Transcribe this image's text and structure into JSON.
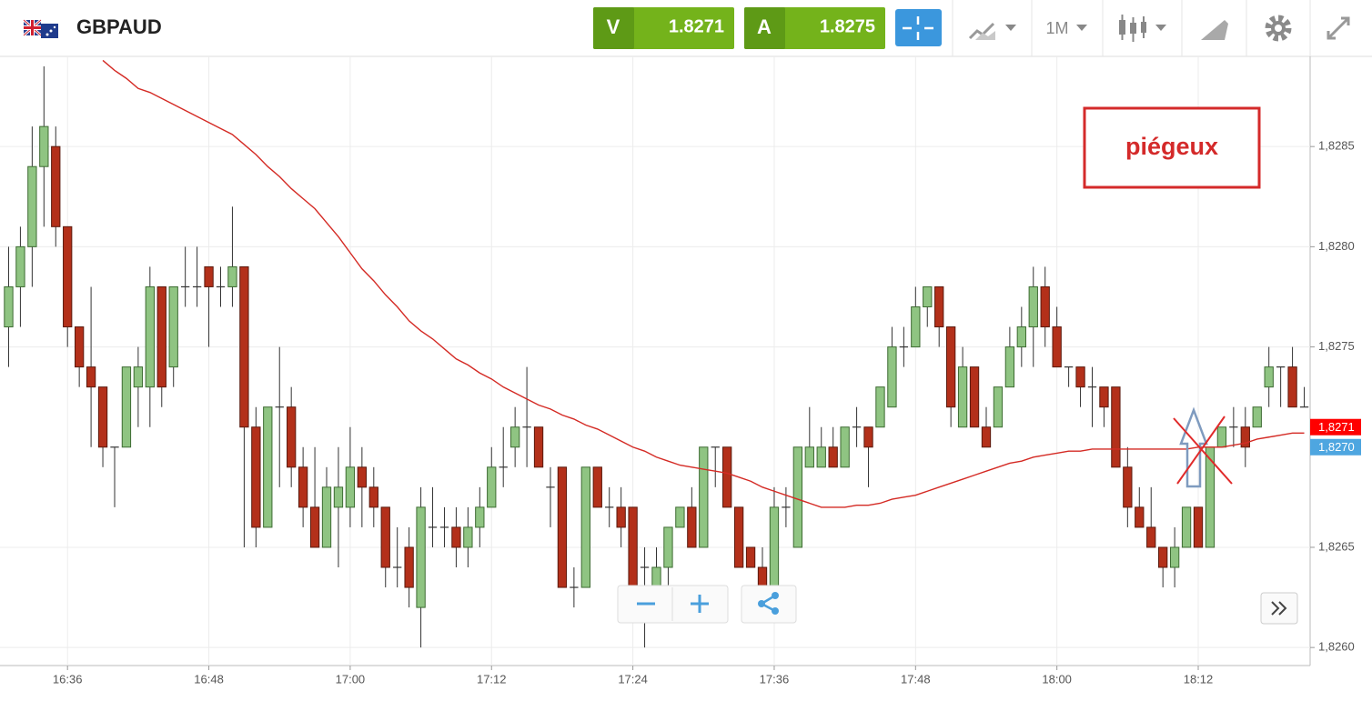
{
  "header": {
    "symbol": "GBPAUD",
    "bid_label": "V",
    "bid": "1.8271",
    "ask_label": "A",
    "ask": "1.8275",
    "timeframe": "1M"
  },
  "chart_data": {
    "type": "candlestick",
    "categories": [
      null,
      null,
      null,
      null,
      null,
      "16:36",
      null,
      null,
      null,
      null,
      null,
      null,
      null,
      null,
      null,
      null,
      null,
      "16:48",
      null,
      null,
      null,
      null,
      null,
      null,
      null,
      null,
      null,
      null,
      null,
      "17:00",
      null,
      null,
      null,
      null,
      null,
      null,
      null,
      null,
      null,
      null,
      null,
      "17:12",
      null,
      null,
      null,
      null,
      null,
      null,
      null,
      null,
      null,
      null,
      null,
      "17:24",
      null,
      null,
      null,
      null,
      null,
      null,
      null,
      null,
      null,
      null,
      null,
      "17:36",
      null,
      null,
      null,
      null,
      null,
      null,
      null,
      null,
      null,
      null,
      null,
      "17:48",
      null,
      null,
      null,
      null,
      null,
      null,
      null,
      null,
      null,
      null,
      null,
      "18:00",
      null,
      null,
      null,
      null,
      null,
      null,
      null,
      null,
      null,
      null,
      null,
      "18:12",
      null,
      null,
      null,
      null,
      null,
      null,
      null,
      null,
      null
    ],
    "open": [
      1.8276,
      1.8278,
      1.828,
      1.8284,
      1.8285,
      1.8281,
      1.8276,
      1.8274,
      1.8273,
      1.827,
      1.827,
      1.8273,
      1.8273,
      1.8278,
      1.8274,
      1.8278,
      1.8278,
      1.8279,
      1.8278,
      1.8278,
      1.8279,
      1.8271,
      1.8266,
      1.8272,
      1.8272,
      1.8269,
      1.8267,
      1.8265,
      1.8267,
      1.8267,
      1.8269,
      1.8268,
      1.8267,
      1.8264,
      1.8265,
      1.8262,
      1.8266,
      1.8266,
      1.8266,
      1.8265,
      1.8266,
      1.8267,
      1.8269,
      1.827,
      1.8271,
      1.8271,
      1.8268,
      1.8269,
      1.8263,
      1.8263,
      1.8269,
      1.8267,
      1.8267,
      1.8267,
      1.8264,
      1.8263,
      1.8264,
      1.8266,
      1.8267,
      1.8265,
      1.827,
      1.827,
      1.8267,
      1.8265,
      1.8264,
      1.8263,
      1.8267,
      1.8265,
      1.8269,
      1.8269,
      1.827,
      1.8269,
      1.8271,
      1.8271,
      1.8271,
      1.8272,
      1.8275,
      1.8275,
      1.8277,
      1.8278,
      1.8276,
      1.8271,
      1.8274,
      1.8271,
      1.8271,
      1.8273,
      1.8275,
      1.8276,
      1.8278,
      1.8276,
      1.8274,
      1.8274,
      1.8273,
      1.8273,
      1.8273,
      1.8269,
      1.8267,
      1.8266,
      1.8265,
      1.8264,
      1.8265,
      1.8267,
      1.8265,
      1.827,
      1.8271,
      1.8271,
      1.8271,
      1.8273,
      1.8274,
      1.8274,
      1.8272
    ],
    "high": [
      1.828,
      1.8281,
      1.8286,
      1.8289,
      1.8286,
      1.8281,
      1.8276,
      1.8278,
      1.8273,
      1.827,
      1.8274,
      1.8275,
      1.8279,
      1.8278,
      1.8278,
      1.828,
      1.828,
      1.8279,
      1.8279,
      1.8282,
      1.8279,
      1.8272,
      1.8272,
      1.8275,
      1.8273,
      1.827,
      1.827,
      1.8269,
      1.827,
      1.8271,
      1.827,
      1.8269,
      1.8267,
      1.8266,
      1.8266,
      1.8268,
      1.8268,
      1.8267,
      1.8267,
      1.8267,
      1.8268,
      1.827,
      1.8271,
      1.8272,
      1.8274,
      1.8271,
      1.8269,
      1.8269,
      1.8264,
      1.8269,
      1.8269,
      1.8268,
      1.8268,
      1.8267,
      1.8265,
      1.8265,
      1.8266,
      1.8267,
      1.8268,
      1.827,
      1.827,
      1.827,
      1.8267,
      1.8265,
      1.8265,
      1.8268,
      1.8268,
      1.827,
      1.8272,
      1.8271,
      1.8271,
      1.8271,
      1.8272,
      1.8271,
      1.8273,
      1.8276,
      1.8276,
      1.8278,
      1.8278,
      1.8278,
      1.8276,
      1.8275,
      1.8274,
      1.8272,
      1.8273,
      1.8276,
      1.8277,
      1.8279,
      1.8279,
      1.8277,
      1.8274,
      1.8274,
      1.8274,
      1.8273,
      1.8273,
      1.827,
      1.8268,
      1.8268,
      1.8265,
      1.8266,
      1.8267,
      1.8267,
      1.827,
      1.8271,
      1.8272,
      1.8272,
      1.8272,
      1.8275,
      1.8274,
      1.8275,
      1.8273
    ],
    "low": [
      1.8274,
      1.8276,
      1.8278,
      1.8281,
      1.828,
      1.8275,
      1.8273,
      1.827,
      1.8269,
      1.8267,
      1.827,
      1.8271,
      1.8271,
      1.8272,
      1.8273,
      1.8277,
      1.8277,
      1.8275,
      1.8277,
      1.8277,
      1.8265,
      1.8265,
      1.8266,
      1.8268,
      1.8268,
      1.8266,
      1.8265,
      1.8265,
      1.8264,
      1.8266,
      1.8266,
      1.8266,
      1.8263,
      1.8263,
      1.8262,
      1.826,
      1.8265,
      1.8265,
      1.8264,
      1.8264,
      1.8265,
      1.8267,
      1.8268,
      1.8269,
      1.8269,
      1.8269,
      1.8266,
      1.8263,
      1.8262,
      1.8263,
      1.8267,
      1.8266,
      1.8265,
      1.8262,
      1.826,
      1.8263,
      1.8263,
      1.8266,
      1.8265,
      1.8265,
      1.8268,
      1.8267,
      1.8264,
      1.8264,
      1.8263,
      1.8263,
      1.8266,
      1.8265,
      1.8269,
      1.8269,
      1.8269,
      1.8269,
      1.827,
      1.8268,
      1.8271,
      1.8272,
      1.8274,
      1.8275,
      1.8276,
      1.8275,
      1.8271,
      1.8271,
      1.8271,
      1.827,
      1.8271,
      1.8273,
      1.8274,
      1.8274,
      1.8275,
      1.8274,
      1.8273,
      1.8272,
      1.8271,
      1.8271,
      1.8269,
      1.8266,
      1.8266,
      1.8265,
      1.8263,
      1.8263,
      1.8265,
      1.8265,
      1.8265,
      1.827,
      1.827,
      1.8269,
      1.8271,
      1.8272,
      1.8272,
      1.8272,
      1.8272
    ],
    "close": [
      1.8278,
      1.828,
      1.8284,
      1.8286,
      1.8281,
      1.8276,
      1.8274,
      1.8273,
      1.827,
      1.827,
      1.8274,
      1.8274,
      1.8278,
      1.8273,
      1.8278,
      1.8278,
      1.8278,
      1.8278,
      1.8278,
      1.8279,
      1.8271,
      1.8266,
      1.8272,
      1.8272,
      1.8269,
      1.8267,
      1.8265,
      1.8268,
      1.8268,
      1.8269,
      1.8268,
      1.8267,
      1.8264,
      1.8264,
      1.8263,
      1.8267,
      1.8266,
      1.8266,
      1.8265,
      1.8266,
      1.8267,
      1.8269,
      1.8269,
      1.8271,
      1.8271,
      1.8269,
      1.8268,
      1.8263,
      1.8263,
      1.8269,
      1.8267,
      1.8267,
      1.8266,
      1.8263,
      1.8264,
      1.8264,
      1.8266,
      1.8267,
      1.8265,
      1.827,
      1.827,
      1.8267,
      1.8264,
      1.8264,
      1.8263,
      1.8267,
      1.8267,
      1.827,
      1.827,
      1.827,
      1.8269,
      1.8271,
      1.8271,
      1.827,
      1.8273,
      1.8275,
      1.8275,
      1.8277,
      1.8278,
      1.8276,
      1.8272,
      1.8274,
      1.8271,
      1.827,
      1.8273,
      1.8275,
      1.8276,
      1.8278,
      1.8276,
      1.8274,
      1.8274,
      1.8273,
      1.8273,
      1.8272,
      1.8269,
      1.8267,
      1.8266,
      1.8265,
      1.8264,
      1.8265,
      1.8267,
      1.8265,
      1.827,
      1.8271,
      1.8271,
      1.827,
      1.8272,
      1.8274,
      1.8274,
      1.8272,
      1.8272
    ],
    "up_color": "#8fc482",
    "down_color": "#b3301a",
    "overlays": [
      {
        "type": "line",
        "color": "#d42a24",
        "values": [
          null,
          null,
          null,
          null,
          null,
          null,
          null,
          null,
          1.82893,
          1.82888,
          1.82884,
          1.82879,
          1.82877,
          1.82874,
          1.82871,
          1.82868,
          1.82865,
          1.82862,
          1.82859,
          1.82856,
          1.82851,
          1.82846,
          1.8284,
          1.82835,
          1.82829,
          1.82824,
          1.82819,
          1.82812,
          1.82805,
          1.82797,
          1.82789,
          1.82783,
          1.82776,
          1.8277,
          1.82763,
          1.82758,
          1.82754,
          1.82749,
          1.82744,
          1.82741,
          1.82737,
          1.82734,
          1.8273,
          1.82727,
          1.82724,
          1.82721,
          1.82719,
          1.82716,
          1.82714,
          1.82711,
          1.82709,
          1.82706,
          1.82703,
          1.827,
          1.82698,
          1.82695,
          1.82693,
          1.82691,
          1.8269,
          1.82689,
          1.82688,
          1.82687,
          1.82685,
          1.82683,
          1.8268,
          1.82678,
          1.82676,
          1.82674,
          1.82672,
          1.8267,
          1.8267,
          1.8267,
          1.82671,
          1.82671,
          1.82672,
          1.82674,
          1.82675,
          1.82676,
          1.82678,
          1.8268,
          1.82682,
          1.82684,
          1.82686,
          1.82688,
          1.8269,
          1.82692,
          1.82693,
          1.82695,
          1.82696,
          1.82697,
          1.82698,
          1.82698,
          1.82699,
          1.82699,
          1.82699,
          1.82699,
          1.82699,
          1.82699,
          1.82699,
          1.82699,
          1.82699,
          1.827,
          1.827,
          1.827,
          1.82701,
          1.82702,
          1.82704,
          1.82705,
          1.82706,
          1.82707,
          1.82707
        ]
      }
    ],
    "ylim": [
      1.82591,
      1.82895
    ],
    "yticks": [
      {
        "value": 1.826,
        "label": "1,8260"
      },
      {
        "value": 1.8265,
        "label": "1,8265"
      },
      {
        "value": 1.8275,
        "label": "1,8275"
      },
      {
        "value": 1.828,
        "label": "1,8280"
      },
      {
        "value": 1.8285,
        "label": "1,8285"
      }
    ],
    "grid": true,
    "price_markers": [
      {
        "value": 1.8271,
        "label": "1,8271",
        "color": "#ff0000"
      },
      {
        "value": 1.827,
        "label": "1,8270",
        "color": "#4ea6e0"
      }
    ],
    "annotation": "piégeux"
  }
}
